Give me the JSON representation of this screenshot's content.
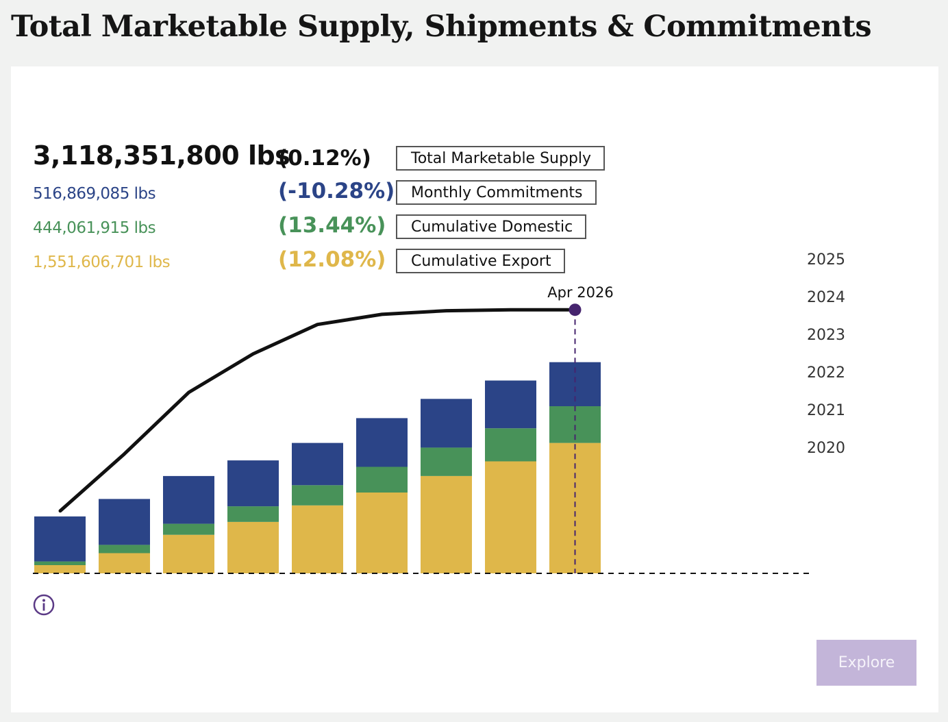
{
  "title": "Total Marketable Supply, Shipments & Commitments",
  "stats": {
    "total": {
      "value": "3,118,351,800 lbs",
      "pct": "(0.12%)",
      "label": "Total Marketable Supply"
    },
    "monthly": {
      "value": "516,869,085 lbs",
      "pct": "(-10.28%)",
      "label": "Monthly Commitments"
    },
    "domestic": {
      "value": "444,061,915 lbs",
      "pct": "(13.44%)",
      "label": "Cumulative Domestic"
    },
    "export": {
      "value": "1,551,606,701 lbs",
      "pct": "(12.08%)",
      "label": "Cumulative Export"
    }
  },
  "years": [
    "2025",
    "2024",
    "2023",
    "2022",
    "2021",
    "2020"
  ],
  "explore_label": "Explore",
  "colors": {
    "total": "#111111",
    "monthly": "#2b4487",
    "domestic": "#489259",
    "export": "#dfb74a",
    "marker": "#46246e"
  },
  "chart_data": {
    "type": "bar",
    "categories": [
      "",
      "",
      "",
      "",
      "",
      "",
      "",
      "",
      ""
    ],
    "series": [
      {
        "name": "Cumulative Export",
        "values": [
          0.09,
          0.22,
          0.42,
          0.56,
          0.74,
          0.88,
          1.06,
          1.22,
          1.42
        ]
      },
      {
        "name": "Cumulative Domestic",
        "values": [
          0.04,
          0.09,
          0.12,
          0.17,
          0.22,
          0.28,
          0.31,
          0.36,
          0.4
        ]
      },
      {
        "name": "Monthly Commitments",
        "values": [
          0.49,
          0.5,
          0.52,
          0.5,
          0.46,
          0.53,
          0.53,
          0.52,
          0.48
        ]
      },
      {
        "name": "Total Marketable Supply",
        "type": "line",
        "values": [
          0.68,
          1.3,
          1.97,
          2.39,
          2.71,
          2.82,
          2.86,
          2.87,
          2.87
        ]
      }
    ],
    "marker": {
      "label": "Apr 2026",
      "index": 8
    },
    "ylim": [
      0,
      3.2
    ],
    "grid": false,
    "stacked": true
  }
}
